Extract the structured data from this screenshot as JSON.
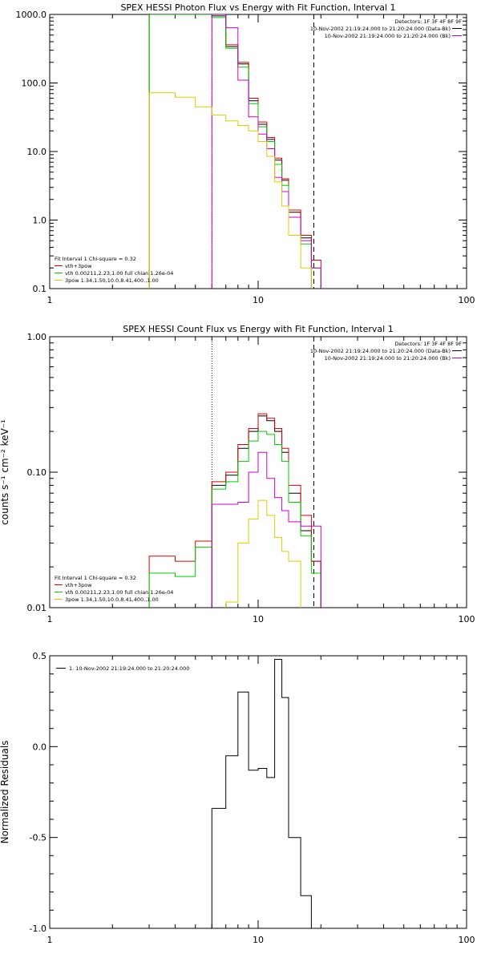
{
  "chart_data": [
    {
      "type": "line",
      "title": "SPEX HESSI Photon Flux vs Energy with Fit Function, Interval 1",
      "xscale": "log",
      "yscale": "log",
      "xlim": [
        1,
        100
      ],
      "ylim": [
        0.1,
        1000
      ],
      "xticks": [
        "1",
        "10",
        "100"
      ],
      "yticks": [
        "0.1",
        "1.0",
        "10.0",
        "100.0",
        "1000.0"
      ],
      "ylabel": "",
      "legend_tr": {
        "header": "Detectors: 1F 3F 4F 8F 9F",
        "rows": [
          {
            "text": "10-Nov-2002 21:19:24.000 to 21:20:24.000 (Data-Bk)",
            "color": "#000000"
          },
          {
            "text": "10-Nov-2002 21:19:24.000 to 21:20:24.000 (Bk)",
            "color": "#cc00cc"
          }
        ]
      },
      "legend_bl": {
        "header": "Fit Interval 1   Chi-square = 0.32",
        "rows": [
          {
            "text": "vth+3pow",
            "color": "#dd0000"
          },
          {
            "text": "vth 0.00211,2.23,1.00  full chian 1.26e-04",
            "color": "#00cc00"
          },
          {
            "text": "3pow 1.34,1.50,10.0,8.41,400.,1.00",
            "color": "#ddcc00"
          }
        ]
      },
      "vlines": [
        {
          "x": 6.0,
          "style": "dotted"
        },
        {
          "x": 18.5,
          "style": "dashed"
        }
      ],
      "series": [
        {
          "color": "#000000",
          "edges": [
            3,
            4,
            5,
            6,
            7,
            8,
            9,
            10,
            11,
            12,
            13,
            14,
            16,
            18
          ],
          "values": [
            1000,
            1000,
            1000,
            950,
            340,
            190,
            55,
            25,
            15,
            7.5,
            3.8,
            1.3,
            0.55
          ]
        },
        {
          "color": "#dd0000",
          "edges": [
            3,
            4,
            5,
            6,
            7,
            8,
            9,
            10,
            11,
            12,
            13,
            14,
            16,
            18,
            20
          ],
          "values": [
            1000,
            1000,
            1000,
            1000,
            360,
            200,
            60,
            27,
            16,
            8,
            4,
            1.4,
            0.6,
            0.26
          ]
        },
        {
          "color": "#00cc00",
          "edges": [
            3,
            4,
            5,
            6,
            7,
            8,
            9,
            10,
            11,
            12,
            13,
            14,
            16,
            18,
            20
          ],
          "values": [
            1000,
            1000,
            1000,
            900,
            320,
            170,
            50,
            23,
            14,
            6.5,
            3.2,
            1.1,
            0.45,
            0.2
          ]
        },
        {
          "color": "#cc00cc",
          "edges": [
            6,
            7,
            8,
            9,
            10,
            11,
            12,
            13,
            14,
            16,
            18,
            20
          ],
          "values": [
            1000,
            640,
            110,
            32,
            18,
            11,
            4.2,
            2.6,
            1.1,
            0.5,
            0.2
          ]
        },
        {
          "color": "#ddcc00",
          "edges": [
            3,
            4,
            5,
            6,
            7,
            8,
            9,
            10,
            11,
            12,
            13,
            14,
            16,
            18
          ],
          "values": [
            72,
            62,
            45,
            34,
            28,
            24,
            20,
            14,
            8.5,
            3.6,
            1.6,
            0.6,
            0.2
          ]
        }
      ]
    },
    {
      "type": "line",
      "title": "SPEX HESSI Count Flux vs Energy with Fit Function, Interval 1",
      "xscale": "log",
      "yscale": "log",
      "xlim": [
        1,
        100
      ],
      "ylim": [
        0.01,
        1.0
      ],
      "xticks": [
        "1",
        "10",
        "100"
      ],
      "yticks": [
        "0.01",
        "0.10",
        "1.00"
      ],
      "ylabel": "counts s⁻¹ cm⁻² keV⁻¹",
      "legend_tr": {
        "header": "Detectors: 1F 3F 4F 8F 9F",
        "rows": [
          {
            "text": "10-Nov-2002 21:19:24.000 to 21:20:24.000 (Data-Bk)",
            "color": "#000000"
          },
          {
            "text": "10-Nov-2002 21:19:24.000 to 21:20:24.000 (Bk)",
            "color": "#cc00cc"
          }
        ]
      },
      "legend_bl": {
        "header": "Fit Interval 1   Chi-square = 0.32",
        "rows": [
          {
            "text": "vth+3pow",
            "color": "#dd0000"
          },
          {
            "text": "vth 0.00211,2.23,1.00  full chian 1.26e-04",
            "color": "#00cc00"
          },
          {
            "text": "3pow 1.34,1.50,10.0,8.41,400.,1.00",
            "color": "#ddcc00"
          }
        ]
      },
      "vlines": [
        {
          "x": 6.0,
          "style": "dotted"
        },
        {
          "x": 18.5,
          "style": "dashed"
        }
      ],
      "series": [
        {
          "color": "#000000",
          "edges": [
            6,
            7,
            8,
            9,
            10,
            11,
            12,
            13,
            14,
            16,
            18,
            20
          ],
          "values": [
            0.08,
            0.095,
            0.15,
            0.2,
            0.26,
            0.24,
            0.2,
            0.14,
            0.07,
            0.037,
            0.022
          ]
        },
        {
          "color": "#dd0000",
          "edges": [
            3,
            4,
            5,
            6,
            7,
            8,
            9,
            10,
            11,
            12,
            13,
            14,
            16,
            18,
            20
          ],
          "values": [
            0.024,
            0.022,
            0.031,
            0.085,
            0.1,
            0.16,
            0.21,
            0.27,
            0.25,
            0.21,
            0.15,
            0.08,
            0.048,
            0.022
          ]
        },
        {
          "color": "#00cc00",
          "edges": [
            3,
            4,
            5,
            6,
            7,
            8,
            9,
            10,
            11,
            12,
            13,
            14,
            16,
            18,
            20
          ],
          "values": [
            0.018,
            0.017,
            0.028,
            0.075,
            0.085,
            0.12,
            0.17,
            0.2,
            0.19,
            0.16,
            0.12,
            0.06,
            0.034,
            0.018
          ]
        },
        {
          "color": "#cc00cc",
          "edges": [
            6,
            7,
            8,
            9,
            10,
            11,
            12,
            13,
            14,
            16,
            18,
            20
          ],
          "values": [
            0.058,
            0.058,
            0.06,
            0.1,
            0.14,
            0.09,
            0.065,
            0.052,
            0.043,
            0.04,
            0.04
          ]
        },
        {
          "color": "#ddcc00",
          "edges": [
            7,
            8,
            9,
            10,
            11,
            12,
            13,
            14,
            16
          ],
          "values": [
            0.011,
            0.03,
            0.045,
            0.062,
            0.048,
            0.033,
            0.026,
            0.022
          ]
        }
      ]
    },
    {
      "type": "line",
      "title": "",
      "xscale": "log",
      "yscale": "linear",
      "xlim": [
        1,
        100
      ],
      "ylim": [
        -1.0,
        0.5
      ],
      "xticks": [
        "1",
        "10",
        "100"
      ],
      "yticks": [
        "-1.0",
        "-0.5",
        "0.0",
        "0.5"
      ],
      "ylabel": "Normalized Residuals",
      "legend_tl": {
        "rows": [
          {
            "text": "1. 10-Nov-2002 21:19:24.000 to 21:20:24.000",
            "color": "#000000"
          }
        ]
      },
      "series": [
        {
          "color": "#000000",
          "edges": [
            6,
            7,
            8,
            9,
            10,
            11,
            12,
            13,
            14,
            16,
            18
          ],
          "values": [
            -0.34,
            -0.05,
            0.3,
            -0.13,
            -0.12,
            -0.17,
            0.48,
            0.27,
            -0.5,
            -0.82
          ]
        }
      ]
    }
  ]
}
